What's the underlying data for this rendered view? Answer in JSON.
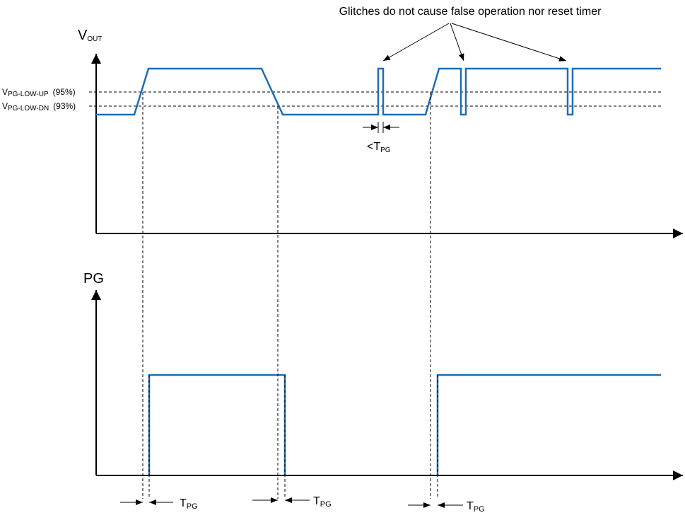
{
  "annotation": "Glitches do not cause false operation nor reset timer",
  "vout_axis": {
    "label": "V",
    "subscript": "OUT"
  },
  "pg_axis": {
    "label": "PG"
  },
  "thresholds": [
    {
      "label": "V",
      "subscript": "PG-LOW-UP",
      "percent": "(95%)"
    },
    {
      "label": "V",
      "subscript": "PG-LOW-DN",
      "percent": "(93%)"
    }
  ],
  "glitch_width": {
    "label": "<T",
    "subscript": "PG"
  },
  "delays": [
    {
      "label": "T",
      "subscript": "PG"
    },
    {
      "label": "T",
      "subscript": "PG"
    },
    {
      "label": "T",
      "subscript": "PG"
    }
  ]
}
